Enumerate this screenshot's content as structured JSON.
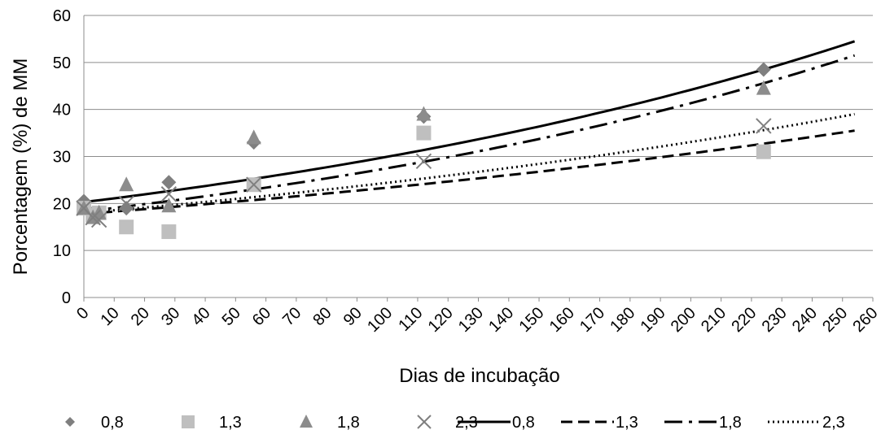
{
  "chart_data": {
    "type": "scatter",
    "xlabel": "Dias de incubação",
    "ylabel": "Porcentagem (%)  de MM",
    "xlim": [
      0,
      260
    ],
    "ylim": [
      0,
      60
    ],
    "x_ticks": [
      "0",
      "10",
      "20",
      "30",
      "40",
      "50",
      "60",
      "70",
      "80",
      "90",
      "100",
      "110",
      "120",
      "130",
      "140",
      "150",
      "160",
      "170",
      "180",
      "190",
      "200",
      "210",
      "220",
      "230",
      "240",
      "250",
      "260"
    ],
    "y_ticks": [
      "0",
      "10",
      "20",
      "30",
      "40",
      "50",
      "60"
    ],
    "grid": "horizontal",
    "legend_position": "bottom",
    "series": [
      {
        "name": "0,8",
        "marker": "diamond",
        "color": "#7f7f7f",
        "points": [
          [
            0,
            20.5
          ],
          [
            3,
            18
          ],
          [
            5,
            18
          ],
          [
            14,
            19
          ],
          [
            28,
            24.5
          ],
          [
            56,
            33
          ],
          [
            112,
            38.5
          ],
          [
            224,
            48.5
          ]
        ]
      },
      {
        "name": "1,3",
        "marker": "square",
        "color": "#bfbfbf",
        "points": [
          [
            0,
            19
          ],
          [
            3,
            17.5
          ],
          [
            5,
            18
          ],
          [
            14,
            15
          ],
          [
            28,
            14
          ],
          [
            56,
            24
          ],
          [
            112,
            35
          ],
          [
            224,
            31
          ]
        ]
      },
      {
        "name": "1,8",
        "marker": "triangle",
        "color": "#8c8c8c",
        "points": [
          [
            0,
            19
          ],
          [
            3,
            17
          ],
          [
            5,
            18
          ],
          [
            14,
            24
          ],
          [
            28,
            19.5
          ],
          [
            56,
            34
          ],
          [
            112,
            39
          ],
          [
            224,
            44.5
          ]
        ]
      },
      {
        "name": "2,3",
        "marker": "x",
        "color": "#7f7f7f",
        "points": [
          [
            0,
            19
          ],
          [
            3,
            17
          ],
          [
            5,
            16.5
          ],
          [
            14,
            20
          ],
          [
            28,
            22
          ],
          [
            56,
            24
          ],
          [
            112,
            29
          ],
          [
            224,
            36.5
          ]
        ]
      }
    ],
    "trendlines": [
      {
        "name": "0,8",
        "style": "solid",
        "y_start": 20.3,
        "y_end": 54.5
      },
      {
        "name": "1,3",
        "style": "dash",
        "y_start": 17.8,
        "y_end": 35.5
      },
      {
        "name": "1,8",
        "style": "dashdot",
        "y_start": 18.3,
        "y_end": 51.5
      },
      {
        "name": "2,3",
        "style": "dot",
        "y_start": 18.0,
        "y_end": 39.0
      }
    ]
  }
}
